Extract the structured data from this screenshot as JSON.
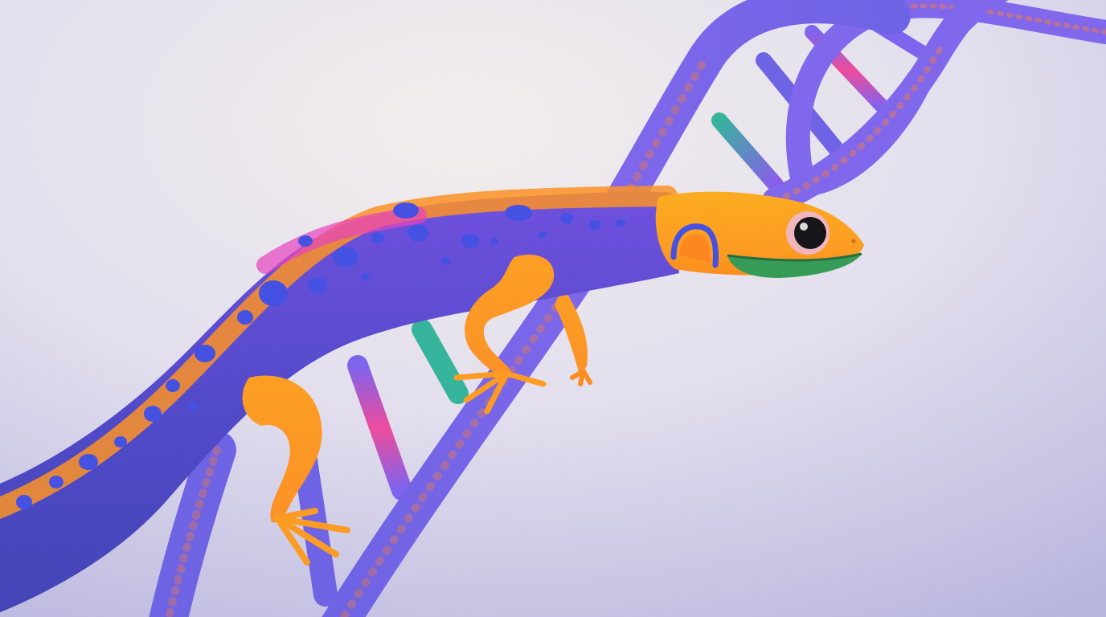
{
  "scene": {
    "subject": "salamander",
    "backdrop": "dna-double-helix",
    "colors": {
      "background_light": "#f5f0ee",
      "background_mid": "#e4e0f0",
      "background_edge": "#b9b6e0",
      "helix_blue": "#6a5fe6",
      "helix_violet": "#7d63ee",
      "helix_orange": "#ff7a2f",
      "rung_pink": "#f0479b",
      "rung_teal": "#2fb39a",
      "body_navy": "#3d3fb6",
      "body_purple": "#6c4be0",
      "body_orange": "#ff8f1f",
      "head_orange": "#ffab18",
      "spot_blue": "#3f4ce4",
      "spot_magenta": "#e83cc1",
      "mouth_green": "#2f9a52",
      "eye_black": "#0d0d12",
      "eye_ring": "#f2b6bd"
    }
  }
}
